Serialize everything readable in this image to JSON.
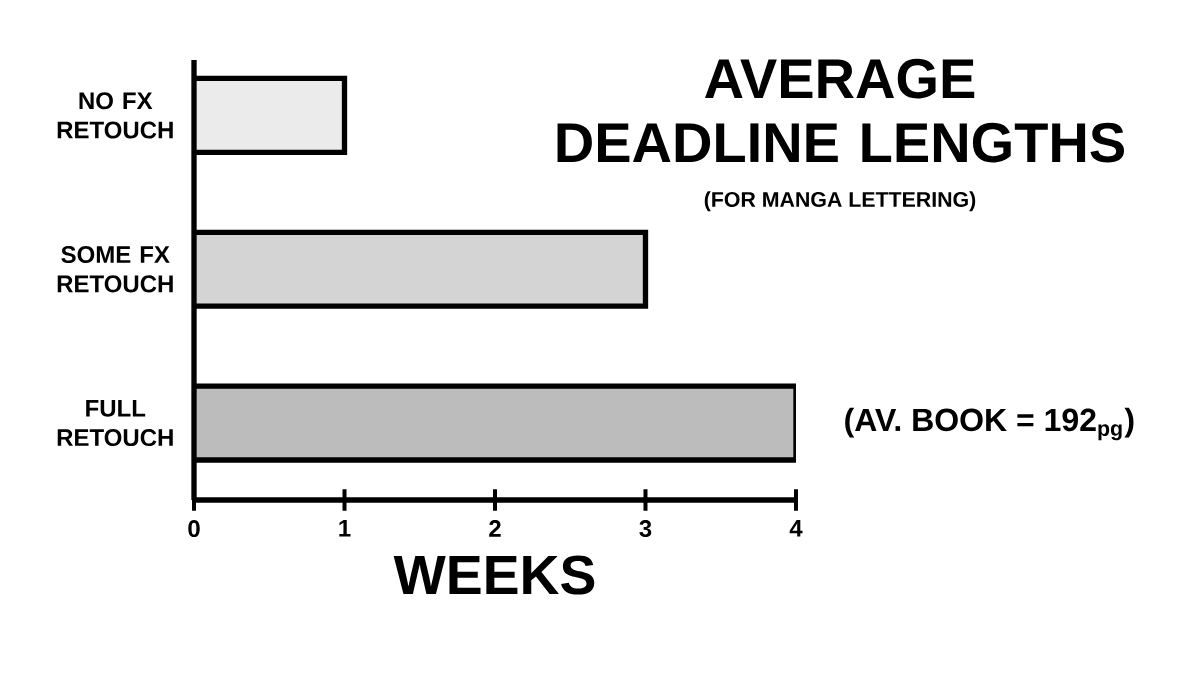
{
  "chart_data": {
    "type": "bar",
    "orientation": "horizontal",
    "title": "AVERAGE DEADLINE LENGTHS",
    "subtitle": "(FOR MANGA LETTERING)",
    "xlabel": "WEEKS",
    "categories": [
      "NO FX RETOUCH",
      "SOME FX RETOUCH",
      "FULL RETOUCH"
    ],
    "values": [
      1,
      3,
      4
    ],
    "colors": [
      "#ebebeb",
      "#d4d4d4",
      "#bcbcbc"
    ],
    "xlim": [
      0,
      4
    ],
    "xticks": [
      0,
      1,
      2,
      3,
      4
    ],
    "annotations": [
      "(AV. BOOK = 192$_{pg}$)"
    ]
  }
}
